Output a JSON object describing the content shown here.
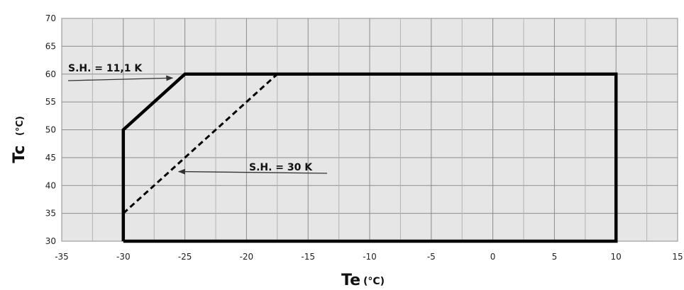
{
  "chart_data": {
    "type": "line",
    "title": "",
    "xlabel": "Te",
    "xlabel_unit": "(°C)",
    "ylabel": "Tc",
    "ylabel_unit": "(°C)",
    "xlim": [
      -35,
      15
    ],
    "ylim": [
      30,
      70
    ],
    "xticks": [
      -35,
      -30,
      -25,
      -20,
      -15,
      -10,
      -5,
      0,
      5,
      10,
      15
    ],
    "yticks": [
      30,
      35,
      40,
      45,
      50,
      55,
      60,
      65,
      70
    ],
    "grid": true,
    "background": "#e6e6e6",
    "series": [
      {
        "style": "solid",
        "color": "#000000",
        "x": [
          -30,
          -30,
          -25,
          10,
          10,
          -30
        ],
        "y": [
          30,
          50,
          60,
          60,
          30,
          30
        ]
      },
      {
        "style": "dashed",
        "color": "#000000",
        "x": [
          -30,
          -17.5
        ],
        "y": [
          35,
          60
        ]
      }
    ],
    "annotations": [
      {
        "text": "S.H. = 11,1 K",
        "arrow_to": [
          -26,
          59.3
        ]
      },
      {
        "text": "S.H. = 30 K",
        "arrow_to": [
          -25.5,
          42.5
        ]
      }
    ]
  }
}
